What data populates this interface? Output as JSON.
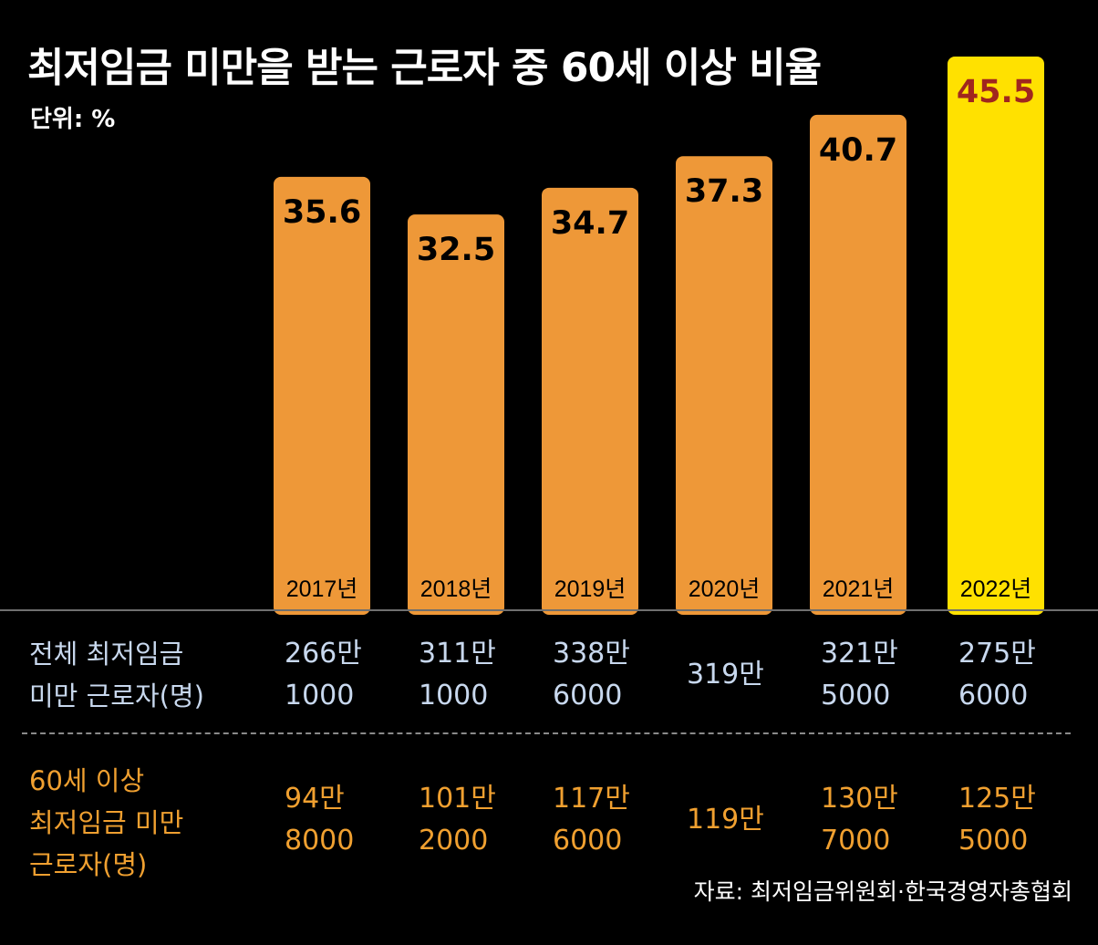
{
  "title": "최저임금 미만을 받는 근로자 중 60세 이상 비율",
  "unit_label": "단위: %",
  "colors": {
    "background": "#000000",
    "bar": "#EE9838",
    "highlight_bar": "#FFE100",
    "value_text": "#000000",
    "highlight_value_text": "#A0261E",
    "total_row_text": "#C8D8EE",
    "senior_row_text": "#F0A030"
  },
  "chart_data": {
    "type": "bar",
    "title": "최저임금 미만을 받는 근로자 중 60세 이상 비율",
    "unit": "%",
    "categories": [
      "2017년",
      "2018년",
      "2019년",
      "2020년",
      "2021년",
      "2022년"
    ],
    "values": [
      35.6,
      32.5,
      34.7,
      37.3,
      40.7,
      45.5
    ],
    "data_labels": [
      "35.6",
      "32.5",
      "34.7",
      "37.3",
      "40.7",
      "45.5"
    ],
    "highlight_index": 5,
    "ylim": [
      0,
      45.5
    ],
    "grid": false,
    "legend": "none"
  },
  "table": {
    "rows": [
      {
        "label_lines": [
          "전체 최저임금",
          "미만 근로자(명)"
        ],
        "cells": [
          [
            "266만",
            "1000"
          ],
          [
            "311만",
            "1000"
          ],
          [
            "338만",
            "6000"
          ],
          [
            "319만"
          ],
          [
            "321만",
            "5000"
          ],
          [
            "275만",
            "6000"
          ]
        ]
      },
      {
        "label_lines": [
          "60세 이상",
          "최저임금 미만",
          "근로자(명)"
        ],
        "cells": [
          [
            "94만",
            "8000"
          ],
          [
            "101만",
            "2000"
          ],
          [
            "117만",
            "6000"
          ],
          [
            "119만"
          ],
          [
            "130만",
            "7000"
          ],
          [
            "125만",
            "5000"
          ]
        ]
      }
    ]
  },
  "source": "자료: 최저임금위원회·한국경영자총협회"
}
